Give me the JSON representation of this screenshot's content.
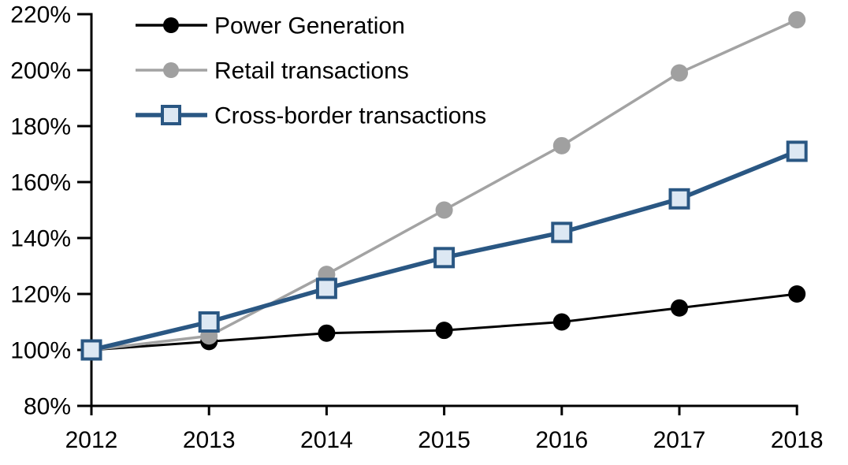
{
  "chart_data": {
    "type": "line",
    "title": "",
    "xlabel": "",
    "ylabel": "",
    "grid": false,
    "legend_position": "top-left",
    "background_color": "#ffffff",
    "axis_color": "#000000",
    "x_categories": [
      "2012",
      "2013",
      "2014",
      "2015",
      "2016",
      "2017",
      "2018"
    ],
    "ylim": [
      80,
      220
    ],
    "y_tick_step": 20,
    "y_ticks": [
      {
        "value": 80,
        "label": "80%"
      },
      {
        "value": 100,
        "label": "100%"
      },
      {
        "value": 120,
        "label": "120%"
      },
      {
        "value": 140,
        "label": "140%"
      },
      {
        "value": 160,
        "label": "160%"
      },
      {
        "value": 180,
        "label": "180%"
      },
      {
        "value": 200,
        "label": "200%"
      },
      {
        "value": 220,
        "label": "220%"
      }
    ],
    "series": [
      {
        "name": "Power Generation",
        "values": [
          100,
          103,
          106,
          107,
          110,
          115,
          120
        ],
        "color": "#000000",
        "marker": "circle",
        "marker_fill": "#000000",
        "line_width": 3
      },
      {
        "name": "Retail transactions",
        "values": [
          100,
          105,
          127,
          150,
          173,
          199,
          218
        ],
        "color": "#a3a3a3",
        "marker": "circle",
        "marker_fill": "#a0a0a0",
        "line_width": 3.5
      },
      {
        "name": "Cross-border transactions",
        "values": [
          100,
          110,
          122,
          133,
          142,
          154,
          171
        ],
        "color": "#2a5783",
        "marker": "square",
        "marker_fill": "#dde8f3",
        "line_width": 5.5
      }
    ]
  }
}
